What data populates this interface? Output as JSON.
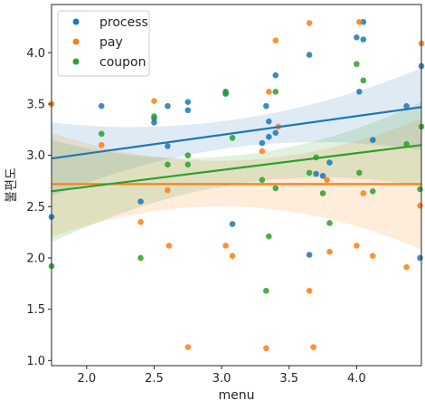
{
  "chart_data": {
    "type": "scatter",
    "xlabel": "menu",
    "ylabel": "불편도",
    "xlim": [
      1.74,
      4.48
    ],
    "ylim": [
      0.95,
      4.47
    ],
    "xticks": [
      "2.0",
      "2.5",
      "3.0",
      "3.5",
      "4.0"
    ],
    "yticks": [
      "1.0",
      "1.5",
      "2.0",
      "2.5",
      "3.0",
      "3.5",
      "4.0"
    ],
    "legend_position": "top-left",
    "grid": false,
    "series": [
      {
        "name": "process",
        "color": "#1f77b4",
        "x": [
          1.74,
          2.11,
          2.4,
          2.5,
          2.5,
          2.6,
          2.6,
          2.75,
          2.75,
          3.03,
          3.03,
          3.08,
          3.3,
          3.33,
          3.35,
          3.35,
          3.4,
          3.4,
          3.65,
          3.65,
          3.7,
          3.75,
          3.8,
          4.0,
          4.02,
          4.05,
          4.05,
          4.12,
          4.37,
          4.47,
          4.48
        ],
        "y": [
          2.4,
          3.48,
          2.55,
          3.32,
          3.36,
          3.09,
          3.48,
          3.44,
          3.52,
          3.6,
          3.62,
          2.33,
          3.12,
          3.48,
          3.18,
          3.33,
          3.78,
          3.22,
          3.98,
          2.03,
          2.82,
          2.8,
          2.93,
          4.15,
          3.62,
          4.3,
          4.13,
          3.15,
          3.48,
          2.0,
          3.87
        ]
      },
      {
        "name": "pay",
        "color": "#ff7f0e",
        "x": [
          1.74,
          2.11,
          2.4,
          2.5,
          2.6,
          2.61,
          2.75,
          3.03,
          3.08,
          3.3,
          3.33,
          3.35,
          3.4,
          3.42,
          3.65,
          3.65,
          3.68,
          3.78,
          3.8,
          4.0,
          4.02,
          4.05,
          4.12,
          4.37,
          4.47,
          4.48
        ],
        "y": [
          3.5,
          3.1,
          2.35,
          3.53,
          2.66,
          2.12,
          1.13,
          2.12,
          2.02,
          3.04,
          1.12,
          3.62,
          4.12,
          3.28,
          4.29,
          1.68,
          1.13,
          2.76,
          2.06,
          2.12,
          4.3,
          2.63,
          2.02,
          1.91,
          2.51,
          4.09
        ]
      },
      {
        "name": "coupon",
        "color": "#2ca02c",
        "x": [
          1.74,
          2.11,
          2.4,
          2.5,
          2.6,
          2.75,
          2.75,
          3.03,
          3.08,
          3.3,
          3.33,
          3.35,
          3.4,
          3.4,
          3.65,
          3.7,
          3.75,
          3.8,
          4.0,
          4.02,
          4.05,
          4.12,
          4.37,
          4.47,
          4.48
        ],
        "y": [
          1.92,
          3.21,
          2.0,
          3.38,
          2.91,
          2.91,
          3.0,
          3.61,
          3.17,
          2.76,
          1.68,
          2.21,
          3.62,
          2.68,
          2.83,
          2.98,
          2.63,
          2.34,
          3.89,
          2.83,
          3.73,
          2.65,
          3.11,
          2.67,
          3.28
        ]
      }
    ],
    "regression": [
      {
        "series": "process",
        "y_at_xmin": 2.97,
        "y_at_xmax": 3.47,
        "ci_low_at_xmin": 2.6,
        "ci_high_at_xmin": 3.32,
        "ci_low_mid": 3.08,
        "ci_high_mid": 3.35,
        "ci_low_at_xmax": 3.05,
        "ci_high_at_xmax": 3.85
      },
      {
        "series": "pay",
        "y_at_xmin": 2.72,
        "y_at_xmax": 2.72,
        "ci_low_at_xmin": 2.2,
        "ci_high_at_xmin": 3.22,
        "ci_low_mid": 2.5,
        "ci_high_mid": 2.95,
        "ci_low_at_xmax": 2.08,
        "ci_high_at_xmax": 3.36
      },
      {
        "series": "coupon",
        "y_at_xmin": 2.65,
        "y_at_xmax": 3.1,
        "ci_low_at_xmin": 2.15,
        "ci_high_at_xmin": 3.15,
        "ci_low_mid": 2.72,
        "ci_high_mid": 3.0,
        "ci_low_at_xmax": 2.7,
        "ci_high_at_xmax": 3.52
      }
    ]
  }
}
